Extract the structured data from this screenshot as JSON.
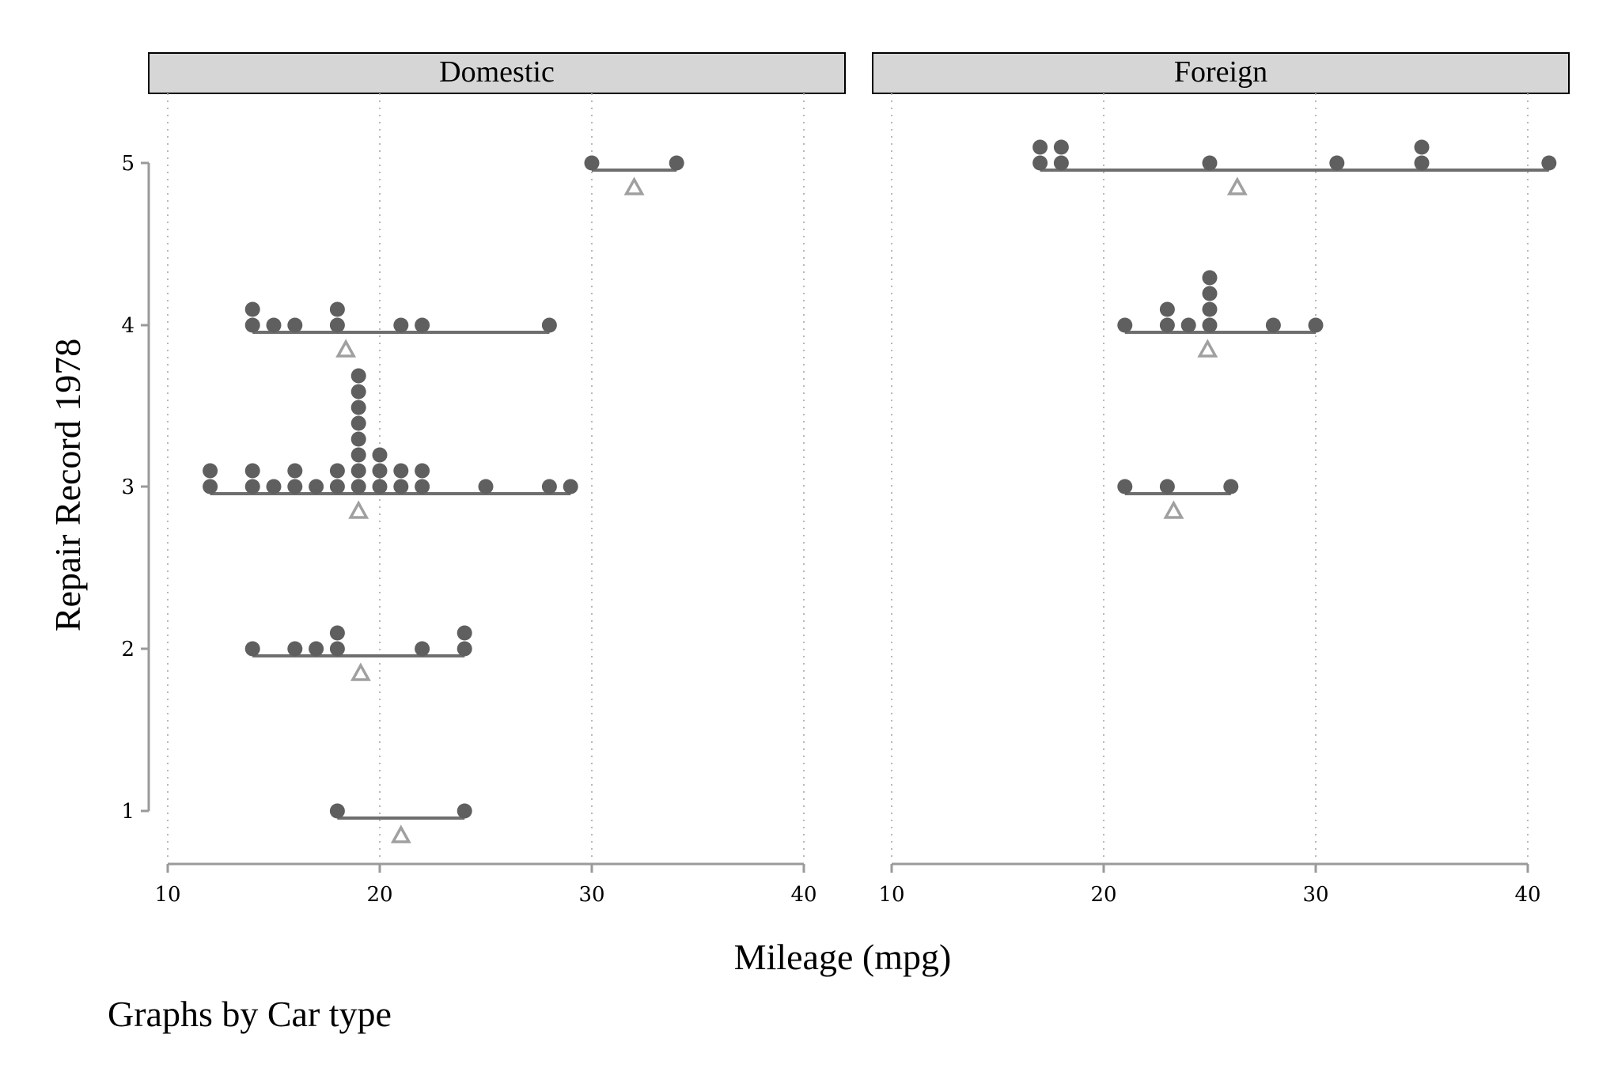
{
  "chart_data": {
    "type": "scatter",
    "subtype": "dot-plot",
    "xlabel": "Mileage (mpg)",
    "ylabel": "Repair Record 1978",
    "note": "Graphs by Car type",
    "x_ticks": [
      10,
      20,
      30,
      40
    ],
    "y_ticks": [
      1,
      2,
      3,
      4,
      5
    ],
    "xlim": [
      10,
      40
    ],
    "ylim": [
      1,
      5
    ],
    "grid": "vertical dotted",
    "colors": {
      "points": "#5f5f5f",
      "range_line": "#6e6e6e",
      "mean_marker": "#a0a0a0",
      "header_fill": "#d6d6d6"
    },
    "marker": {
      "points": "filled circle",
      "mean": "hollow triangle"
    },
    "panels": [
      {
        "name": "Domestic",
        "groups": [
          {
            "rep78": 5,
            "mpg": [
              30,
              34
            ],
            "range": [
              30,
              34
            ],
            "mean": 32.0
          },
          {
            "rep78": 4,
            "mpg": [
              14,
              14,
              15,
              16,
              18,
              18,
              21,
              22,
              28
            ],
            "range": [
              14,
              28
            ],
            "mean": 18.4
          },
          {
            "rep78": 3,
            "mpg": [
              12,
              12,
              14,
              14,
              15,
              16,
              16,
              17,
              18,
              18,
              19,
              19,
              19,
              19,
              19,
              19,
              19,
              19,
              20,
              20,
              20,
              21,
              21,
              22,
              22,
              25,
              28,
              29
            ],
            "range": [
              12,
              29
            ],
            "mean": 19.0
          },
          {
            "rep78": 2,
            "mpg": [
              14,
              16,
              17,
              18,
              18,
              22,
              24,
              24
            ],
            "range": [
              14,
              24
            ],
            "mean": 19.1
          },
          {
            "rep78": 1,
            "mpg": [
              18,
              24
            ],
            "range": [
              18,
              24
            ],
            "mean": 21.0
          }
        ]
      },
      {
        "name": "Foreign",
        "groups": [
          {
            "rep78": 5,
            "mpg": [
              17,
              17,
              18,
              18,
              25,
              31,
              35,
              35,
              41
            ],
            "range": [
              17,
              41
            ],
            "mean": 26.3
          },
          {
            "rep78": 4,
            "mpg": [
              21,
              23,
              23,
              24,
              25,
              25,
              25,
              25,
              28,
              30
            ],
            "range": [
              21,
              30
            ],
            "mean": 24.9
          },
          {
            "rep78": 3,
            "mpg": [
              21,
              23,
              26
            ],
            "range": [
              21,
              26
            ],
            "mean": 23.3
          }
        ]
      }
    ]
  }
}
